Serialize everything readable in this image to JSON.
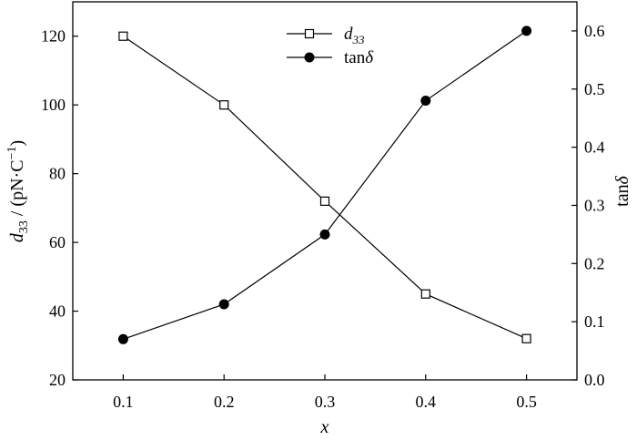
{
  "chart_data": {
    "type": "line",
    "x": [
      0.1,
      0.2,
      0.3,
      0.4,
      0.5
    ],
    "xlim": [
      0.05,
      0.55
    ],
    "x_ticks": [
      "0.1",
      "0.2",
      "0.3",
      "0.4",
      "0.5"
    ],
    "xlabel": "x",
    "y_left": {
      "label": "d33 / (pN·C−1)",
      "label_parts": {
        "symbol": "d",
        "sub": "33",
        "rest": " / (pN·C",
        "sup": "−1",
        "close": ")"
      },
      "lim": [
        20,
        130
      ],
      "ticks": [
        "20",
        "40",
        "60",
        "80",
        "100",
        "120"
      ]
    },
    "y_right": {
      "label": "tanδ",
      "label_parts": {
        "fn": "tan",
        "sym": "δ"
      },
      "lim": [
        0.0,
        0.65
      ],
      "ticks": [
        "0.0",
        "0.1",
        "0.2",
        "0.3",
        "0.4",
        "0.5",
        "0.6"
      ]
    },
    "series": [
      {
        "name": "d33",
        "name_parts": {
          "symbol": "d",
          "sub": "33"
        },
        "axis": "left",
        "marker": "open-square",
        "values": [
          120,
          100,
          72,
          45,
          32
        ]
      },
      {
        "name": "tanδ",
        "name_parts": {
          "fn": "tan",
          "sym": "δ"
        },
        "axis": "right",
        "marker": "filled-circle",
        "values": [
          0.07,
          0.13,
          0.25,
          0.48,
          0.6
        ]
      }
    ],
    "legend_position": "top-center",
    "grid": false,
    "colors": {
      "line": "#000000",
      "background": "#ffffff"
    }
  }
}
